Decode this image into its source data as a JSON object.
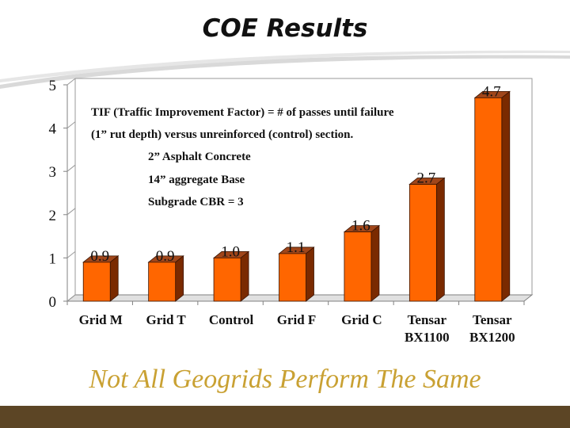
{
  "slide": {
    "title": "COE Results",
    "tagline": "Not All Geogrids Perform The Same"
  },
  "notes": {
    "line1": "TIF (Traffic Improvement Factor) = # of passes until failure",
    "line2": "(1” rut depth) versus unreinforced (control) section.",
    "line3": "2” Asphalt Concrete",
    "line4": "14” aggregate Base",
    "line5": "Subgrade CBR = 3"
  },
  "colors": {
    "bar_front": "#ff6600",
    "bar_side": "#7a2a00",
    "bar_top": "#a0461a",
    "tagline": "#c9a133",
    "footer": "#5c4525",
    "swoosh": "#d9d9d9"
  },
  "chart_data": {
    "type": "bar",
    "categories": [
      [
        "Grid M"
      ],
      [
        "Grid T"
      ],
      [
        "Control"
      ],
      [
        "Grid F"
      ],
      [
        "Grid C"
      ],
      [
        "Tensar",
        "BX1100"
      ],
      [
        "Tensar",
        "BX1200"
      ]
    ],
    "values": [
      0.9,
      0.9,
      1.0,
      1.1,
      1.6,
      2.7,
      4.7
    ],
    "data_labels": [
      "0.9",
      "0.9",
      "1.0",
      "1.1",
      "1.6",
      "2.7",
      "4.7"
    ],
    "y_ticks": [
      "0",
      "1",
      "2",
      "3",
      "4",
      "5"
    ],
    "ylim": [
      0,
      5
    ],
    "grid": false,
    "legend": "none",
    "title": "",
    "xlabel": "",
    "ylabel": ""
  }
}
